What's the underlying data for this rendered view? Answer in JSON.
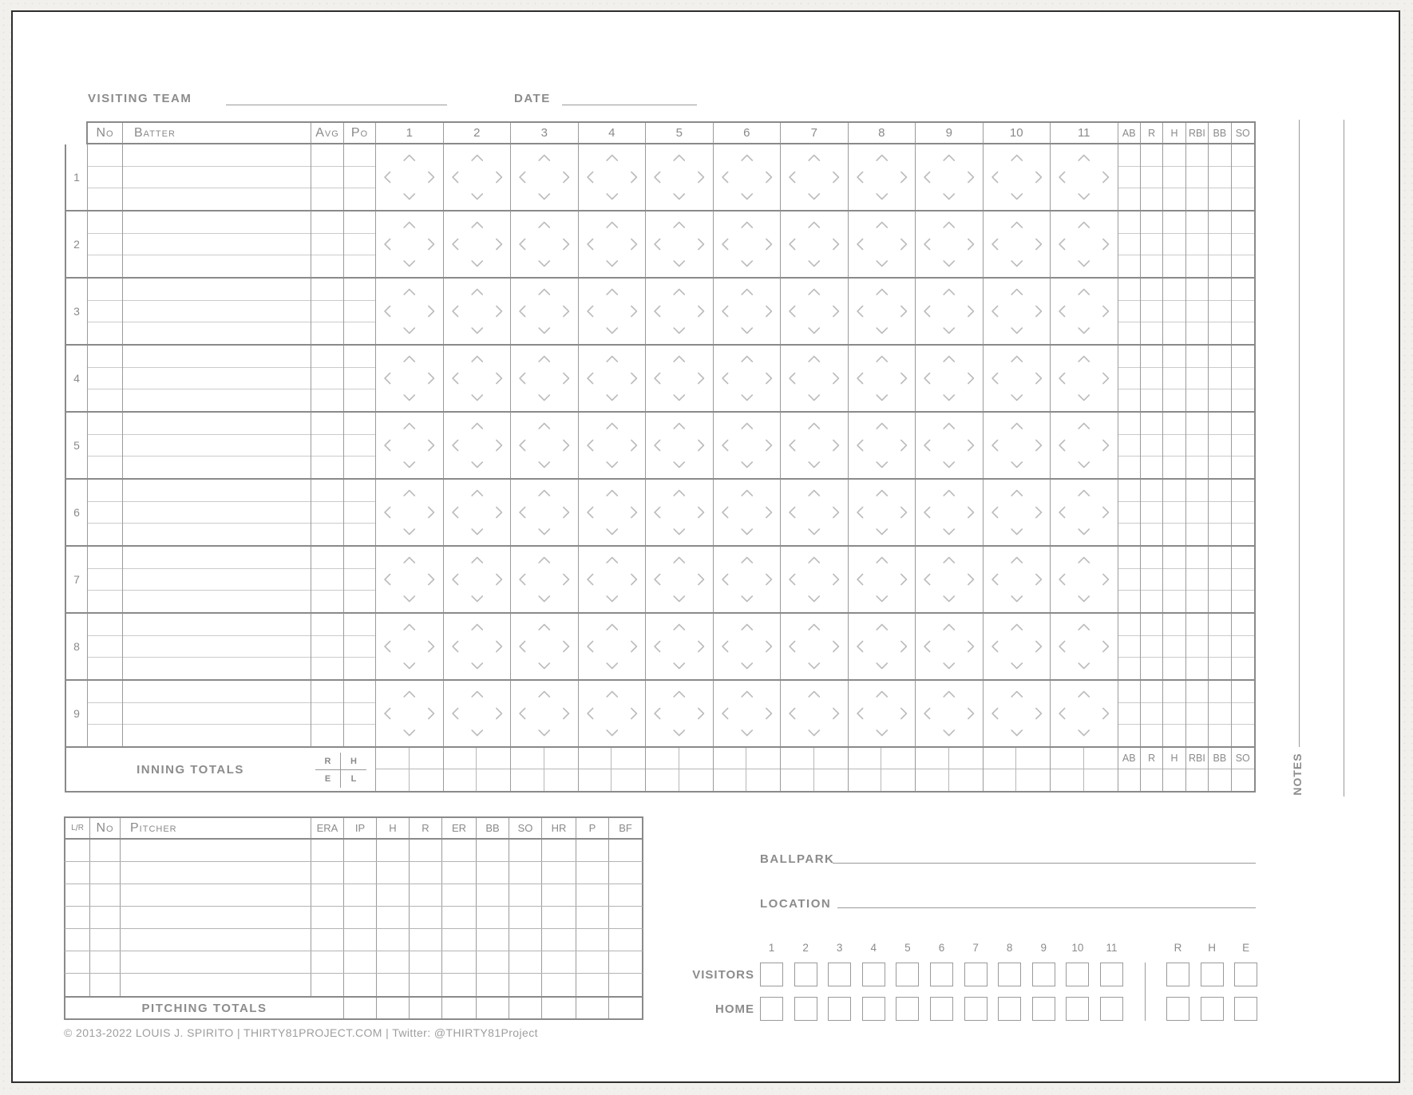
{
  "page": {
    "visiting_team_label": "VISITING TEAM",
    "date_label": "DATE",
    "notes_label": "NOTES",
    "copyright": "© 2013-2022 LOUIS J. SPIRITO | THIRTY81PROJECT.COM | Twitter: @THIRTY81Project"
  },
  "batting": {
    "col_headers": {
      "no": "No",
      "batter": "Batter",
      "avg": "Avg",
      "po": "Po"
    },
    "inning_headers": [
      "1",
      "2",
      "3",
      "4",
      "5",
      "6",
      "7",
      "8",
      "9",
      "10",
      "11"
    ],
    "stat_headers": [
      "AB",
      "R",
      "H",
      "RBI",
      "BB",
      "SO"
    ],
    "order_numbers": [
      "1",
      "2",
      "3",
      "4",
      "5",
      "6",
      "7",
      "8",
      "9"
    ],
    "totals_label": "INNING TOTALS",
    "totals_cross": [
      "R",
      "H",
      "E",
      "L"
    ],
    "totals_stat_headers": [
      "AB",
      "R",
      "H",
      "RBI",
      "BB",
      "SO"
    ]
  },
  "pitching": {
    "col_headers": [
      "L/R",
      "No",
      "Pitcher",
      "ERA",
      "IP",
      "H",
      "R",
      "ER",
      "BB",
      "SO",
      "HR",
      "P",
      "BF"
    ],
    "totals_label": "PITCHING TOTALS"
  },
  "game_info": {
    "ballpark_label": "BALLPARK",
    "location_label": "LOCATION"
  },
  "linescore": {
    "inning_headers": [
      "1",
      "2",
      "3",
      "4",
      "5",
      "6",
      "7",
      "8",
      "9",
      "10",
      "11"
    ],
    "rhe_headers": [
      "R",
      "H",
      "E"
    ],
    "row_labels": [
      "VISITORS",
      "HOME"
    ]
  },
  "colors": {
    "thick_line": "#8a8a8a",
    "medium_line": "#9b9b9b",
    "thin_line": "#cbcbcb",
    "text_gray": "#8c8c8c",
    "chevron_gray": "#bcbcbc",
    "card_border": "#2e2e2e",
    "page_background": "#f2f0ed"
  }
}
